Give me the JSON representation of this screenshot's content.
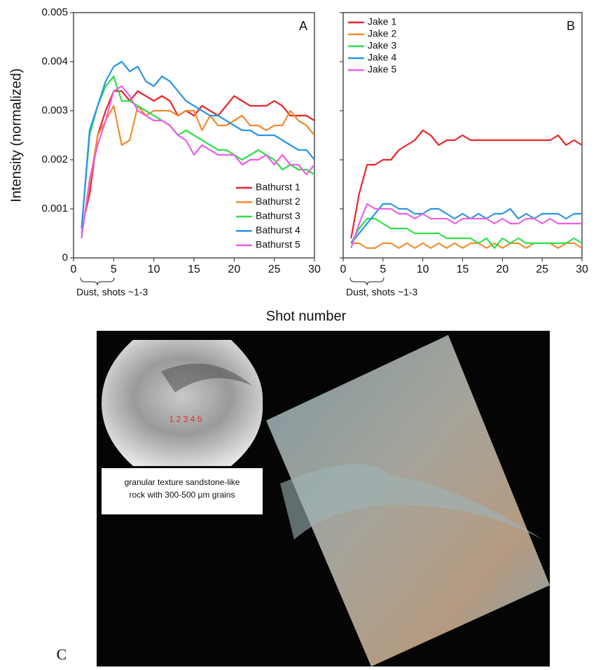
{
  "chart_data": [
    {
      "type": "line",
      "panel_label": "A",
      "ylabel": "Intensity (normalized)",
      "annotation": "Dust, shots ~1-3",
      "x": [
        1,
        2,
        3,
        4,
        5,
        6,
        7,
        8,
        9,
        10,
        11,
        12,
        13,
        14,
        15,
        16,
        17,
        18,
        19,
        20,
        21,
        22,
        23,
        24,
        25,
        26,
        27,
        28,
        29,
        30
      ],
      "series": [
        {
          "name": "Bathurst 1",
          "color": "#e8262a",
          "values": [
            0.0006,
            0.0013,
            0.0025,
            0.003,
            0.0034,
            0.0034,
            0.0032,
            0.0034,
            0.0033,
            0.0032,
            0.0033,
            0.0032,
            0.0029,
            0.003,
            0.0029,
            0.0031,
            0.003,
            0.0029,
            0.0031,
            0.0033,
            0.0032,
            0.0031,
            0.0031,
            0.0031,
            0.0032,
            0.0031,
            0.0029,
            0.0029,
            0.0029,
            0.0028
          ]
        },
        {
          "name": "Bathurst 2",
          "color": "#f28a2c",
          "values": [
            0.0005,
            0.0015,
            0.0025,
            0.0028,
            0.0031,
            0.0023,
            0.0024,
            0.0031,
            0.0029,
            0.003,
            0.003,
            0.003,
            0.0029,
            0.003,
            0.003,
            0.0026,
            0.0029,
            0.0027,
            0.0027,
            0.0028,
            0.0029,
            0.0027,
            0.0027,
            0.0026,
            0.0027,
            0.0027,
            0.003,
            0.0028,
            0.0027,
            0.0025
          ]
        },
        {
          "name": "Bathurst 3",
          "color": "#2ee04a",
          "values": [
            0.0006,
            0.0025,
            0.0031,
            0.0035,
            0.0037,
            0.0032,
            0.0032,
            0.0031,
            0.003,
            0.0029,
            0.0028,
            0.0027,
            0.0025,
            0.0026,
            0.0025,
            0.0024,
            0.0023,
            0.0022,
            0.0022,
            0.0021,
            0.002,
            0.0021,
            0.0022,
            0.0021,
            0.002,
            0.0018,
            0.0019,
            0.0018,
            0.0018,
            0.0017
          ]
        },
        {
          "name": "Bathurst 4",
          "color": "#2b95e6",
          "values": [
            0.0006,
            0.0026,
            0.0031,
            0.0036,
            0.0039,
            0.004,
            0.0038,
            0.0039,
            0.0036,
            0.0035,
            0.0037,
            0.0036,
            0.0034,
            0.0032,
            0.0031,
            0.003,
            0.0029,
            0.0029,
            0.0028,
            0.0027,
            0.0026,
            0.0026,
            0.0025,
            0.0025,
            0.0025,
            0.0024,
            0.0023,
            0.0022,
            0.0022,
            0.002
          ]
        },
        {
          "name": "Bathurst 5",
          "color": "#ec5fe6",
          "values": [
            0.0004,
            0.0016,
            0.0023,
            0.0028,
            0.0034,
            0.0035,
            0.0033,
            0.003,
            0.0029,
            0.0028,
            0.0028,
            0.0027,
            0.0025,
            0.0024,
            0.0021,
            0.0023,
            0.0022,
            0.0021,
            0.0021,
            0.0021,
            0.0019,
            0.002,
            0.002,
            0.0021,
            0.0019,
            0.0021,
            0.0019,
            0.0019,
            0.0017,
            0.0019
          ]
        }
      ],
      "xlim": [
        0,
        30
      ],
      "ylim": [
        0,
        0.005
      ],
      "xticks": [
        0,
        5,
        10,
        15,
        20,
        25,
        30
      ],
      "yticks": [
        0,
        0.001,
        0.002,
        0.003,
        0.004,
        0.005
      ],
      "ytick_labels": true,
      "legend": "lower right"
    },
    {
      "type": "line",
      "panel_label": "B",
      "annotation": "Dust, shots ~1-3",
      "x": [
        1,
        2,
        3,
        4,
        5,
        6,
        7,
        8,
        9,
        10,
        11,
        12,
        13,
        14,
        15,
        16,
        17,
        18,
        19,
        20,
        21,
        22,
        23,
        24,
        25,
        26,
        27,
        28,
        29,
        30
      ],
      "series": [
        {
          "name": "Jake 1",
          "color": "#e8262a",
          "values": [
            0.0004,
            0.0013,
            0.0019,
            0.0019,
            0.002,
            0.002,
            0.0022,
            0.0023,
            0.0024,
            0.0026,
            0.0025,
            0.0023,
            0.0024,
            0.0024,
            0.0025,
            0.0024,
            0.0024,
            0.0024,
            0.0024,
            0.0024,
            0.0024,
            0.0024,
            0.0024,
            0.0024,
            0.0024,
            0.0024,
            0.0025,
            0.0023,
            0.0024,
            0.0023
          ]
        },
        {
          "name": "Jake 2",
          "color": "#f28a2c",
          "values": [
            0.0003,
            0.0003,
            0.0002,
            0.0002,
            0.0003,
            0.0003,
            0.0002,
            0.0003,
            0.0002,
            0.0003,
            0.0002,
            0.0003,
            0.0002,
            0.0003,
            0.0002,
            0.0003,
            0.0003,
            0.0002,
            0.0003,
            0.0002,
            0.0003,
            0.0003,
            0.0002,
            0.0003,
            0.0003,
            0.0003,
            0.0002,
            0.0003,
            0.0003,
            0.0002
          ]
        },
        {
          "name": "Jake 3",
          "color": "#2ee04a",
          "values": [
            0.0003,
            0.0006,
            0.0008,
            0.0008,
            0.0007,
            0.0006,
            0.0006,
            0.0006,
            0.0005,
            0.0005,
            0.0005,
            0.0005,
            0.0004,
            0.0004,
            0.0004,
            0.0004,
            0.0003,
            0.0004,
            0.0002,
            0.0004,
            0.0003,
            0.0004,
            0.0003,
            0.0003,
            0.0003,
            0.0003,
            0.0003,
            0.0003,
            0.0004,
            0.0003
          ]
        },
        {
          "name": "Jake 4",
          "color": "#2b95e6",
          "values": [
            0.0003,
            0.0005,
            0.0007,
            0.0009,
            0.0011,
            0.0011,
            0.001,
            0.001,
            0.0009,
            0.0009,
            0.001,
            0.001,
            0.0009,
            0.0008,
            0.0009,
            0.0008,
            0.0009,
            0.0008,
            0.0009,
            0.0009,
            0.001,
            0.0008,
            0.0009,
            0.0008,
            0.0009,
            0.0009,
            0.0009,
            0.0008,
            0.0009,
            0.0009
          ]
        },
        {
          "name": "Jake 5",
          "color": "#ec5fe6",
          "values": [
            0.0002,
            0.0007,
            0.0011,
            0.001,
            0.001,
            0.001,
            0.0009,
            0.0009,
            0.0008,
            0.0009,
            0.0008,
            0.0008,
            0.0008,
            0.0007,
            0.0008,
            0.0008,
            0.0008,
            0.0008,
            0.0007,
            0.0008,
            0.0007,
            0.0007,
            0.0008,
            0.0008,
            0.0007,
            0.0008,
            0.0007,
            0.0007,
            0.0007,
            0.0007
          ]
        }
      ],
      "xlim": [
        0,
        30
      ],
      "ylim": [
        0,
        0.005
      ],
      "xticks": [
        0,
        5,
        10,
        15,
        20,
        25,
        30
      ],
      "yticks": [
        0,
        0.001,
        0.002,
        0.003,
        0.004,
        0.005
      ],
      "ytick_labels": false,
      "legend": "upper left"
    }
  ],
  "figure": {
    "xlabel": "Shot number"
  },
  "panel_c": {
    "label": "C",
    "markers": "1 2 3 4 5",
    "caption": [
      "granular texture sandstone-like",
      "rock with 300-500 μm grains"
    ]
  }
}
